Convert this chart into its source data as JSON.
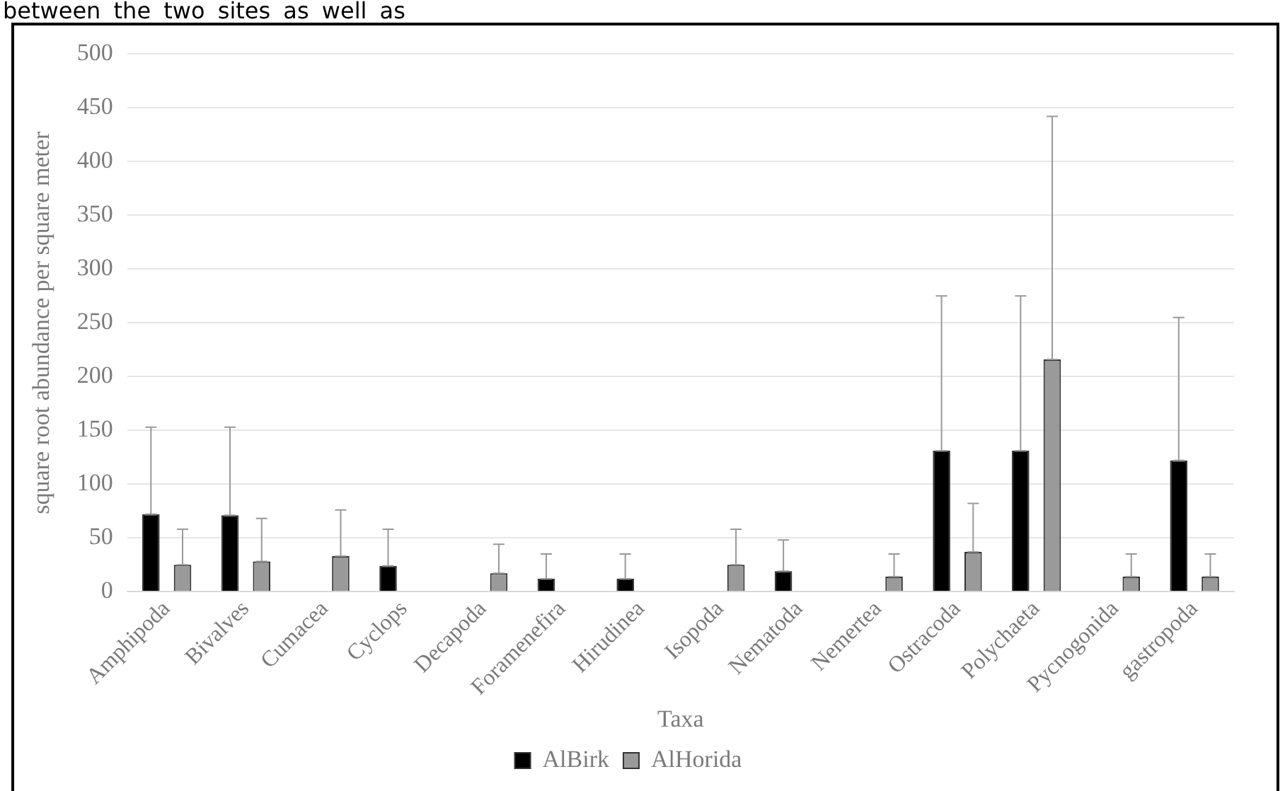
{
  "chart_data": {
    "type": "bar",
    "xlabel": "Taxa",
    "ylabel": "square root abundance per square meter",
    "annotations": [
      "between the two sites as well as"
    ],
    "categories": [
      "Amphipoda",
      "Bivalves",
      "Cumacea",
      "Cyclops",
      "Decapoda",
      "Foramenefira",
      "Hirudinea",
      "Isopoda",
      "Nematoda",
      "Nemertea",
      "Ostracoda",
      "Polychaeta",
      "Pycnogonida",
      "gastropoda"
    ],
    "series": [
      {
        "name": "AlBirk",
        "color": "#000000",
        "values": [
          72,
          71,
          null,
          24,
          null,
          12,
          12,
          null,
          19,
          null,
          131,
          131,
          null,
          122
        ],
        "errors": [
          [
            72,
            153
          ],
          [
            71,
            153
          ],
          null,
          [
            24,
            58
          ],
          null,
          [
            12,
            35
          ],
          [
            12,
            35
          ],
          null,
          [
            19,
            48
          ],
          null,
          [
            131,
            275
          ],
          [
            131,
            275
          ],
          null,
          [
            122,
            255
          ]
        ]
      },
      {
        "name": "AlHorida",
        "color": "#9a9a9a",
        "values": [
          25,
          28,
          33,
          null,
          17,
          null,
          null,
          25,
          null,
          14,
          37,
          216,
          14,
          14
        ],
        "errors": [
          [
            25,
            58
          ],
          [
            28,
            68
          ],
          [
            33,
            76
          ],
          null,
          [
            17,
            44
          ],
          null,
          null,
          [
            25,
            58
          ],
          null,
          [
            14,
            35
          ],
          [
            37,
            82
          ],
          [
            216,
            442
          ],
          [
            14,
            35
          ],
          [
            14,
            35
          ]
        ]
      }
    ],
    "ylim": [
      0,
      500
    ],
    "yticks": [
      0,
      50,
      100,
      150,
      200,
      250,
      300,
      350,
      400,
      450,
      500
    ],
    "grid": "y",
    "legend": "bottom"
  }
}
